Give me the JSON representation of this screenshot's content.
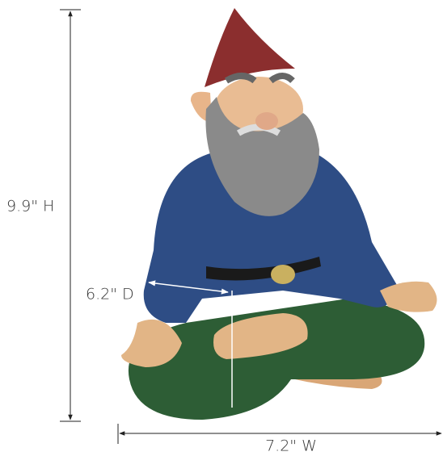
{
  "dimensions": {
    "height": "9.9\" H",
    "depth": "6.2\" D",
    "width": "7.2\" W"
  }
}
